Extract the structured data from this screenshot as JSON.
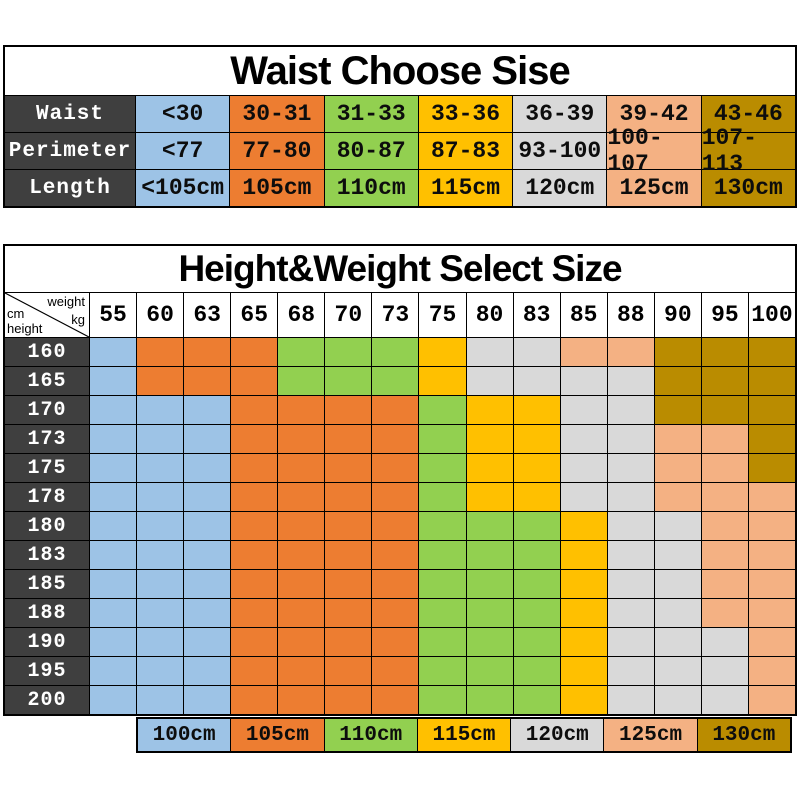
{
  "palette": {
    "blue": "#9DC3E6",
    "orange": "#ED7D31",
    "green": "#92D050",
    "yellow": "#FFC000",
    "gray": "#D9D9D9",
    "peach": "#F4B183",
    "gold": "#BA8C00",
    "header_bg": "#3F3F3F",
    "header_text": "#FFFFFF",
    "grid_line": "#000000"
  },
  "chart_data": [
    {
      "type": "table",
      "title": "Waist Choose Sise",
      "column_colors": [
        "blue",
        "orange",
        "green",
        "yellow",
        "gray",
        "peach",
        "gold"
      ],
      "rows": [
        {
          "label": "Waist",
          "cells": [
            "<30",
            "30-31",
            "31-33",
            "33-36",
            "36-39",
            "39-42",
            "43-46"
          ]
        },
        {
          "label": "Perimeter",
          "cells": [
            "<77",
            "77-80",
            "80-87",
            "87-83",
            "93-100",
            "100-107",
            "107-113"
          ]
        },
        {
          "label": "Length",
          "cells": [
            "<105cm",
            "105cm",
            "110cm",
            "115cm",
            "120cm",
            "125cm",
            "130cm"
          ]
        }
      ]
    },
    {
      "type": "heatmap",
      "title": "Height&Weight Select Size",
      "corner": {
        "top_left": "cm",
        "top_right": "weight",
        "bottom_left": "height",
        "bottom_right": "kg"
      },
      "columns": [
        "55",
        "60",
        "63",
        "65",
        "68",
        "70",
        "73",
        "75",
        "80",
        "83",
        "85",
        "88",
        "90",
        "95",
        "100"
      ],
      "rows": [
        {
          "height": "160",
          "colors": [
            "blue",
            "orange",
            "orange",
            "orange",
            "green",
            "green",
            "green",
            "yellow",
            "gray",
            "gray",
            "peach",
            "peach",
            "gold",
            "gold",
            "gold"
          ]
        },
        {
          "height": "165",
          "colors": [
            "blue",
            "orange",
            "orange",
            "orange",
            "green",
            "green",
            "green",
            "yellow",
            "gray",
            "gray",
            "gray",
            "gray",
            "gold",
            "gold",
            "gold"
          ]
        },
        {
          "height": "170",
          "colors": [
            "blue",
            "blue",
            "blue",
            "orange",
            "orange",
            "orange",
            "orange",
            "green",
            "yellow",
            "yellow",
            "gray",
            "gray",
            "gold",
            "gold",
            "gold"
          ]
        },
        {
          "height": "173",
          "colors": [
            "blue",
            "blue",
            "blue",
            "orange",
            "orange",
            "orange",
            "orange",
            "green",
            "yellow",
            "yellow",
            "gray",
            "gray",
            "peach",
            "peach",
            "gold"
          ]
        },
        {
          "height": "175",
          "colors": [
            "blue",
            "blue",
            "blue",
            "orange",
            "orange",
            "orange",
            "orange",
            "green",
            "yellow",
            "yellow",
            "gray",
            "gray",
            "peach",
            "peach",
            "gold"
          ]
        },
        {
          "height": "178",
          "colors": [
            "blue",
            "blue",
            "blue",
            "orange",
            "orange",
            "orange",
            "orange",
            "green",
            "yellow",
            "yellow",
            "gray",
            "gray",
            "peach",
            "peach",
            "peach"
          ]
        },
        {
          "height": "180",
          "colors": [
            "blue",
            "blue",
            "blue",
            "orange",
            "orange",
            "orange",
            "orange",
            "green",
            "green",
            "green",
            "yellow",
            "gray",
            "gray",
            "peach",
            "peach"
          ]
        },
        {
          "height": "183",
          "colors": [
            "blue",
            "blue",
            "blue",
            "orange",
            "orange",
            "orange",
            "orange",
            "green",
            "green",
            "green",
            "yellow",
            "gray",
            "gray",
            "peach",
            "peach"
          ]
        },
        {
          "height": "185",
          "colors": [
            "blue",
            "blue",
            "blue",
            "orange",
            "orange",
            "orange",
            "orange",
            "green",
            "green",
            "green",
            "yellow",
            "gray",
            "gray",
            "peach",
            "peach"
          ]
        },
        {
          "height": "188",
          "colors": [
            "blue",
            "blue",
            "blue",
            "orange",
            "orange",
            "orange",
            "orange",
            "green",
            "green",
            "green",
            "yellow",
            "gray",
            "gray",
            "peach",
            "peach"
          ]
        },
        {
          "height": "190",
          "colors": [
            "blue",
            "blue",
            "blue",
            "orange",
            "orange",
            "orange",
            "orange",
            "green",
            "green",
            "green",
            "yellow",
            "gray",
            "gray",
            "gray",
            "peach"
          ]
        },
        {
          "height": "195",
          "colors": [
            "blue",
            "blue",
            "blue",
            "orange",
            "orange",
            "orange",
            "orange",
            "green",
            "green",
            "green",
            "yellow",
            "gray",
            "gray",
            "gray",
            "peach"
          ]
        },
        {
          "height": "200",
          "colors": [
            "blue",
            "blue",
            "blue",
            "orange",
            "orange",
            "orange",
            "orange",
            "green",
            "green",
            "green",
            "yellow",
            "gray",
            "gray",
            "gray",
            "peach"
          ]
        }
      ],
      "legend": [
        {
          "label": "100cm",
          "color": "blue"
        },
        {
          "label": "105cm",
          "color": "orange"
        },
        {
          "label": "110cm",
          "color": "green"
        },
        {
          "label": "115cm",
          "color": "yellow"
        },
        {
          "label": "120cm",
          "color": "gray"
        },
        {
          "label": "125cm",
          "color": "peach"
        },
        {
          "label": "130cm",
          "color": "gold"
        }
      ]
    }
  ]
}
